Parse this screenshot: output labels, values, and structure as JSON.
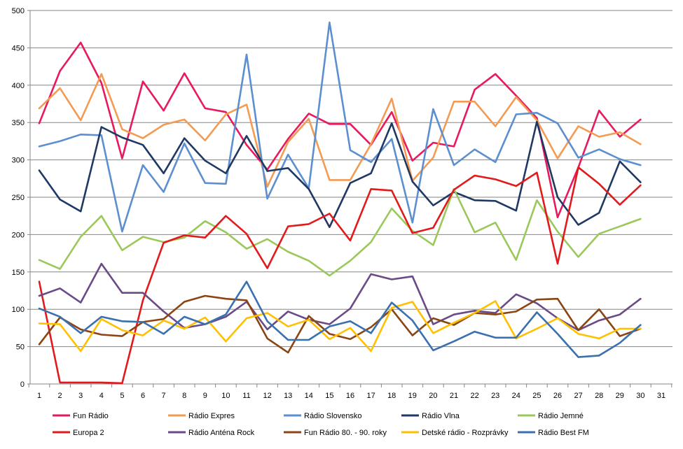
{
  "chart_data": {
    "type": "line",
    "title": "",
    "xlabel": "",
    "ylabel": "",
    "x_ticks": [
      "1",
      "2",
      "3",
      "4",
      "5",
      "6",
      "7",
      "8",
      "9",
      "10",
      "11",
      "12",
      "13",
      "14",
      "15",
      "16",
      "17",
      "18",
      "19",
      "20",
      "21",
      "22",
      "23",
      "24",
      "25",
      "26",
      "27",
      "28",
      "29",
      "30",
      "31"
    ],
    "y_ticks": [
      "0",
      "50",
      "100",
      "150",
      "200",
      "250",
      "300",
      "350",
      "400",
      "450",
      "500"
    ],
    "ylim": [
      0,
      500
    ],
    "xlim": [
      1,
      31
    ],
    "grid": "horizontal",
    "legend_position": "bottom",
    "series": [
      {
        "name": "Fun Rádio",
        "color": "#e8195c",
        "values": [
          349,
          419,
          457,
          403,
          302,
          405,
          366,
          416,
          369,
          364,
          320,
          287,
          328,
          362,
          348,
          348,
          320,
          364,
          299,
          323,
          318,
          394,
          415,
          386,
          356,
          223,
          290,
          366,
          331,
          354
        ]
      },
      {
        "name": "Rádio Expres",
        "color": "#f39b53",
        "values": [
          369,
          396,
          353,
          415,
          341,
          329,
          347,
          354,
          326,
          361,
          374,
          264,
          324,
          355,
          273,
          273,
          321,
          382,
          272,
          303,
          378,
          378,
          345,
          384,
          353,
          302,
          345,
          331,
          337,
          321
        ]
      },
      {
        "name": "Rádio Slovensko",
        "color": "#5b8fd0",
        "values": [
          318,
          325,
          334,
          333,
          204,
          293,
          257,
          322,
          269,
          268,
          441,
          248,
          307,
          262,
          484,
          313,
          297,
          328,
          216,
          368,
          293,
          314,
          297,
          361,
          363,
          349,
          303,
          314,
          301,
          293
        ]
      },
      {
        "name": "Rádio Vlna",
        "color": "#1f3864",
        "values": [
          286,
          247,
          231,
          344,
          330,
          320,
          282,
          329,
          299,
          282,
          332,
          285,
          289,
          261,
          210,
          269,
          282,
          349,
          271,
          239,
          257,
          246,
          245,
          232,
          351,
          250,
          213,
          229,
          298,
          270
        ]
      },
      {
        "name": "Rádio Jemné",
        "color": "#9bc85a",
        "values": [
          166,
          154,
          197,
          225,
          179,
          197,
          190,
          196,
          218,
          203,
          181,
          194,
          177,
          165,
          145,
          165,
          190,
          235,
          205,
          186,
          261,
          203,
          216,
          166,
          246,
          204,
          170,
          201,
          211,
          221
        ]
      },
      {
        "name": "Europa 2",
        "color": "#e31a1c",
        "values": [
          137,
          2,
          2,
          2,
          1,
          112,
          189,
          199,
          196,
          225,
          201,
          155,
          211,
          214,
          228,
          192,
          261,
          259,
          202,
          209,
          260,
          279,
          274,
          265,
          283,
          161,
          290,
          268,
          240,
          266
        ]
      },
      {
        "name": "Rádio Anténa Rock",
        "color": "#6a4a87",
        "values": [
          118,
          128,
          109,
          161,
          122,
          122,
          97,
          75,
          80,
          90,
          110,
          73,
          97,
          86,
          80,
          101,
          147,
          140,
          144,
          80,
          93,
          98,
          95,
          120,
          108,
          88,
          72,
          85,
          93,
          114
        ]
      },
      {
        "name": "Fun Rádio 80. - 90. roky",
        "color": "#8b4513",
        "values": [
          53,
          89,
          73,
          66,
          64,
          83,
          87,
          110,
          118,
          114,
          112,
          61,
          42,
          91,
          67,
          60,
          76,
          100,
          65,
          88,
          79,
          95,
          93,
          97,
          113,
          114,
          72,
          100,
          64,
          74
        ]
      },
      {
        "name": "Detské rádio - Rozprávky",
        "color": "#ffc000",
        "values": [
          81,
          80,
          44,
          87,
          72,
          65,
          85,
          74,
          89,
          57,
          88,
          95,
          77,
          86,
          60,
          75,
          44,
          102,
          110,
          68,
          82,
          95,
          111,
          61,
          74,
          88,
          67,
          61,
          74,
          74
        ]
      },
      {
        "name": "Rádio Best FM",
        "color": "#3a6fb0",
        "values": [
          101,
          90,
          68,
          90,
          84,
          83,
          67,
          90,
          80,
          93,
          137,
          84,
          59,
          59,
          77,
          84,
          68,
          109,
          85,
          45,
          57,
          70,
          62,
          62,
          96,
          67,
          36,
          38,
          55,
          79
        ]
      }
    ]
  }
}
